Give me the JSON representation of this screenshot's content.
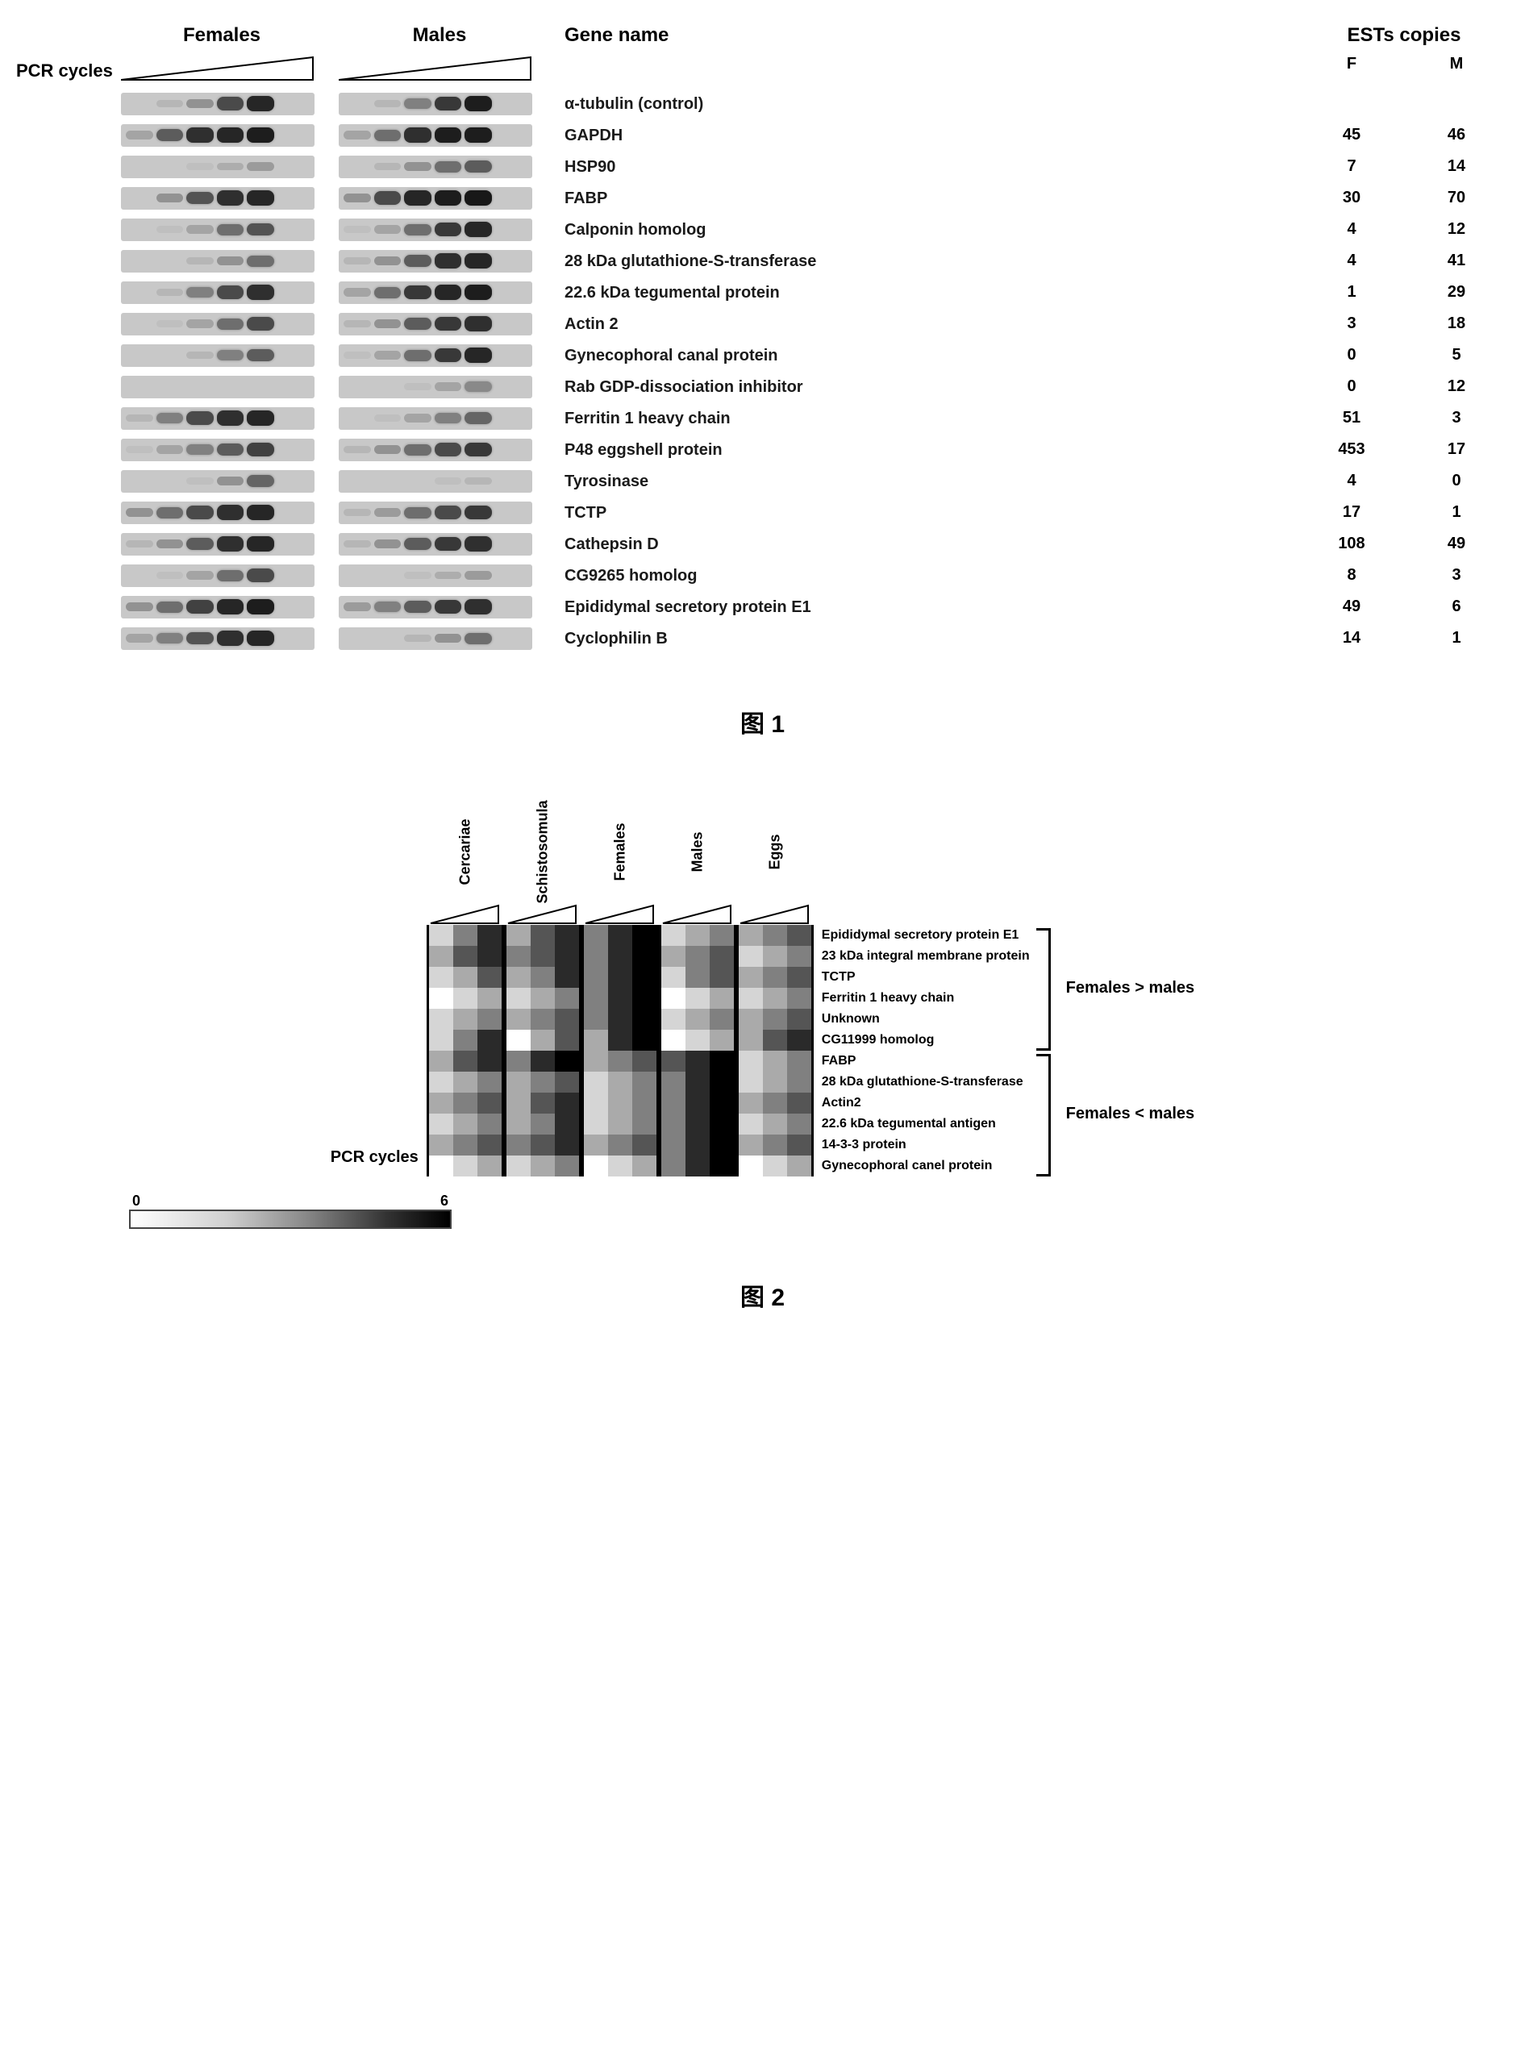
{
  "figure1": {
    "pcr_label": "PCR cycles",
    "col_females": "Females",
    "col_males": "Males",
    "gene_header": "Gene name",
    "est_header": "ESTs copies",
    "est_f": "F",
    "est_m": "M",
    "caption": "图 1",
    "rows": [
      {
        "gene": "α-tubulin (control)",
        "f": "",
        "m": "",
        "female_bands": [
          0,
          0.1,
          0.3,
          0.7,
          0.9
        ],
        "male_bands": [
          0,
          0.1,
          0.4,
          0.8,
          0.95
        ]
      },
      {
        "gene": "GAPDH",
        "f": "45",
        "m": "46",
        "female_bands": [
          0.2,
          0.6,
          0.85,
          0.9,
          0.95
        ],
        "male_bands": [
          0.2,
          0.5,
          0.85,
          0.95,
          0.95
        ]
      },
      {
        "gene": "HSP90",
        "f": "7",
        "m": "14",
        "female_bands": [
          0,
          0,
          0.05,
          0.15,
          0.25
        ],
        "male_bands": [
          0,
          0.1,
          0.3,
          0.5,
          0.6
        ]
      },
      {
        "gene": "FABP",
        "f": "30",
        "m": "70",
        "female_bands": [
          0,
          0.3,
          0.65,
          0.85,
          0.9
        ],
        "male_bands": [
          0.3,
          0.7,
          0.9,
          0.95,
          0.98
        ]
      },
      {
        "gene": "Calponin homolog",
        "f": "4",
        "m": "12",
        "female_bands": [
          0,
          0.05,
          0.2,
          0.5,
          0.65
        ],
        "male_bands": [
          0.05,
          0.2,
          0.5,
          0.8,
          0.9
        ]
      },
      {
        "gene": "28 kDa glutathione-S-transferase",
        "f": "4",
        "m": "41",
        "female_bands": [
          0,
          0,
          0.1,
          0.3,
          0.5
        ],
        "male_bands": [
          0.1,
          0.3,
          0.6,
          0.85,
          0.9
        ]
      },
      {
        "gene": "22.6 kDa tegumental protein",
        "f": "1",
        "m": "29",
        "female_bands": [
          0,
          0.1,
          0.4,
          0.7,
          0.85
        ],
        "male_bands": [
          0.2,
          0.5,
          0.8,
          0.9,
          0.95
        ]
      },
      {
        "gene": "Actin 2",
        "f": "3",
        "m": "18",
        "female_bands": [
          0,
          0.05,
          0.2,
          0.5,
          0.7
        ],
        "male_bands": [
          0.1,
          0.3,
          0.6,
          0.8,
          0.85
        ]
      },
      {
        "gene": "Gynecophoral canal protein",
        "f": "0",
        "m": "5",
        "female_bands": [
          0,
          0,
          0.1,
          0.4,
          0.6
        ],
        "male_bands": [
          0.05,
          0.2,
          0.5,
          0.8,
          0.9
        ]
      },
      {
        "gene": "Rab GDP-dissociation inhibitor",
        "f": "0",
        "m": "12",
        "female_bands": [
          0,
          0,
          0,
          0,
          0
        ],
        "male_bands": [
          0,
          0,
          0.05,
          0.2,
          0.35
        ]
      },
      {
        "gene": "Ferritin 1 heavy chain",
        "f": "51",
        "m": "3",
        "female_bands": [
          0.1,
          0.4,
          0.7,
          0.85,
          0.9
        ],
        "male_bands": [
          0,
          0.05,
          0.2,
          0.4,
          0.55
        ]
      },
      {
        "gene": "P48 eggshell protein",
        "f": "453",
        "m": "17",
        "female_bands": [
          0.05,
          0.2,
          0.4,
          0.6,
          0.75
        ],
        "male_bands": [
          0.1,
          0.3,
          0.5,
          0.7,
          0.8
        ]
      },
      {
        "gene": "Tyrosinase",
        "f": "4",
        "m": "0",
        "female_bands": [
          0,
          0,
          0.05,
          0.3,
          0.55
        ],
        "male_bands": [
          0,
          0,
          0,
          0.05,
          0.1
        ]
      },
      {
        "gene": "TCTP",
        "f": "17",
        "m": "1",
        "female_bands": [
          0.3,
          0.5,
          0.7,
          0.85,
          0.9
        ],
        "male_bands": [
          0.1,
          0.25,
          0.5,
          0.7,
          0.8
        ]
      },
      {
        "gene": "Cathepsin D",
        "f": "108",
        "m": "49",
        "female_bands": [
          0.1,
          0.3,
          0.6,
          0.85,
          0.9
        ],
        "male_bands": [
          0.1,
          0.3,
          0.6,
          0.8,
          0.85
        ]
      },
      {
        "gene": "CG9265 homolog",
        "f": "8",
        "m": "3",
        "female_bands": [
          0,
          0.05,
          0.2,
          0.5,
          0.7
        ],
        "male_bands": [
          0,
          0,
          0.05,
          0.15,
          0.25
        ]
      },
      {
        "gene": "Epididymal secretory protein E1",
        "f": "49",
        "m": "6",
        "female_bands": [
          0.3,
          0.5,
          0.75,
          0.9,
          0.95
        ],
        "male_bands": [
          0.25,
          0.4,
          0.6,
          0.8,
          0.85
        ]
      },
      {
        "gene": "Cyclophilin B",
        "f": "14",
        "m": "1",
        "female_bands": [
          0.2,
          0.4,
          0.65,
          0.85,
          0.9
        ],
        "male_bands": [
          0,
          0,
          0.1,
          0.3,
          0.5
        ]
      }
    ]
  },
  "figure2": {
    "pcr_label": "PCR cycles",
    "caption": "图 2",
    "stages": [
      "Cercariae",
      "Schistosomula",
      "Females",
      "Males",
      "Eggs"
    ],
    "scale_min": "0",
    "scale_max": "6",
    "group1_label": "Females > males",
    "group2_label": "Females < males",
    "group1_count": 6,
    "group2_count": 6,
    "genes": [
      {
        "name": "Epididymal secretory protein E1",
        "vals": [
          [
            1,
            3,
            5
          ],
          [
            2,
            4,
            5
          ],
          [
            3,
            5,
            6
          ],
          [
            1,
            2,
            3
          ],
          [
            2,
            3,
            4
          ]
        ]
      },
      {
        "name": "23 kDa integral membrane protein",
        "vals": [
          [
            2,
            4,
            5
          ],
          [
            3,
            4,
            5
          ],
          [
            3,
            5,
            6
          ],
          [
            2,
            3,
            4
          ],
          [
            1,
            2,
            3
          ]
        ]
      },
      {
        "name": "TCTP",
        "vals": [
          [
            1,
            2,
            4
          ],
          [
            2,
            3,
            5
          ],
          [
            3,
            5,
            6
          ],
          [
            1,
            3,
            4
          ],
          [
            2,
            3,
            4
          ]
        ]
      },
      {
        "name": "Ferritin 1 heavy chain",
        "vals": [
          [
            0,
            1,
            2
          ],
          [
            1,
            2,
            3
          ],
          [
            3,
            5,
            6
          ],
          [
            0,
            1,
            2
          ],
          [
            1,
            2,
            3
          ]
        ]
      },
      {
        "name": "Unknown",
        "vals": [
          [
            1,
            2,
            3
          ],
          [
            2,
            3,
            4
          ],
          [
            3,
            5,
            6
          ],
          [
            1,
            2,
            3
          ],
          [
            2,
            3,
            4
          ]
        ]
      },
      {
        "name": "CG11999 homolog",
        "vals": [
          [
            1,
            3,
            5
          ],
          [
            0,
            2,
            4
          ],
          [
            2,
            5,
            6
          ],
          [
            0,
            1,
            2
          ],
          [
            2,
            4,
            5
          ]
        ]
      },
      {
        "name": "FABP",
        "vals": [
          [
            2,
            4,
            5
          ],
          [
            3,
            5,
            6
          ],
          [
            2,
            3,
            4
          ],
          [
            4,
            5,
            6
          ],
          [
            1,
            2,
            3
          ]
        ]
      },
      {
        "name": "28 kDa glutathione-S-transferase",
        "vals": [
          [
            1,
            2,
            3
          ],
          [
            2,
            3,
            4
          ],
          [
            1,
            2,
            3
          ],
          [
            3,
            5,
            6
          ],
          [
            1,
            2,
            3
          ]
        ]
      },
      {
        "name": "Actin2",
        "vals": [
          [
            2,
            3,
            4
          ],
          [
            2,
            4,
            5
          ],
          [
            1,
            2,
            3
          ],
          [
            3,
            5,
            6
          ],
          [
            2,
            3,
            4
          ]
        ]
      },
      {
        "name": "22.6 kDa tegumental antigen",
        "vals": [
          [
            1,
            2,
            3
          ],
          [
            2,
            3,
            5
          ],
          [
            1,
            2,
            3
          ],
          [
            3,
            5,
            6
          ],
          [
            1,
            2,
            3
          ]
        ]
      },
      {
        "name": "14-3-3 protein",
        "vals": [
          [
            2,
            3,
            4
          ],
          [
            3,
            4,
            5
          ],
          [
            2,
            3,
            4
          ],
          [
            3,
            5,
            6
          ],
          [
            2,
            3,
            4
          ]
        ]
      },
      {
        "name": "Gynecophoral canel protein",
        "vals": [
          [
            0,
            1,
            2
          ],
          [
            1,
            2,
            3
          ],
          [
            0,
            1,
            2
          ],
          [
            3,
            5,
            6
          ],
          [
            0,
            1,
            2
          ]
        ]
      }
    ],
    "colors": {
      "scale_start": "#ffffff",
      "scale_end": "#000000"
    }
  }
}
